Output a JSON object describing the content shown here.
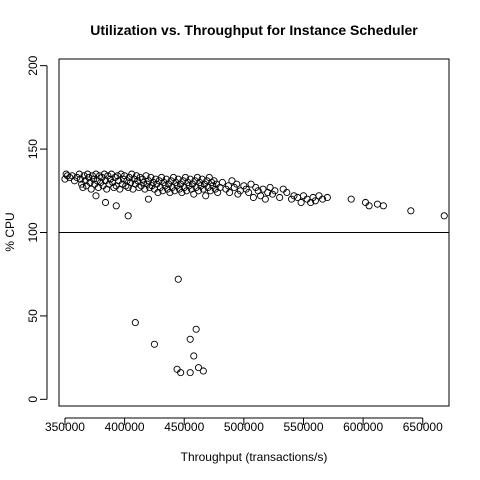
{
  "chart_data": {
    "type": "scatter",
    "title": "Utilization vs. Throughput for Instance Scheduler",
    "xlabel": "Throughput (transactions/s)",
    "ylabel": "% CPU",
    "xlim": [
      345000,
      672000
    ],
    "ylim": [
      -4,
      204
    ],
    "xticks": [
      350000,
      400000,
      450000,
      500000,
      550000,
      600000,
      650000
    ],
    "xtick_labels": [
      "350000",
      "400000",
      "450000",
      "500000",
      "550000",
      "600000",
      "650000"
    ],
    "yticks": [
      0,
      50,
      100,
      150,
      200
    ],
    "ytick_labels": [
      "0",
      "50",
      "100",
      "150",
      "200"
    ],
    "reference_line": {
      "y": 100
    },
    "grid": false,
    "legend": "none",
    "marker": "open-circle",
    "points": [
      [
        350000,
        132
      ],
      [
        351000,
        135
      ],
      [
        352000,
        134
      ],
      [
        354000,
        133
      ],
      [
        356000,
        134
      ],
      [
        358000,
        131
      ],
      [
        360000,
        133
      ],
      [
        362000,
        135
      ],
      [
        363000,
        132
      ],
      [
        364000,
        129
      ],
      [
        365000,
        127
      ],
      [
        366000,
        134
      ],
      [
        367000,
        131
      ],
      [
        368000,
        128
      ],
      [
        369000,
        135
      ],
      [
        370000,
        133
      ],
      [
        371000,
        130
      ],
      [
        372000,
        126
      ],
      [
        373000,
        134
      ],
      [
        374000,
        132
      ],
      [
        375000,
        129
      ],
      [
        376000,
        135
      ],
      [
        377000,
        131
      ],
      [
        378000,
        127
      ],
      [
        379000,
        134
      ],
      [
        380000,
        130
      ],
      [
        381000,
        133
      ],
      [
        382000,
        128
      ],
      [
        383000,
        135
      ],
      [
        384000,
        131
      ],
      [
        385000,
        126
      ],
      [
        386000,
        134
      ],
      [
        387000,
        129
      ],
      [
        388000,
        132
      ],
      [
        389000,
        135
      ],
      [
        390000,
        130
      ],
      [
        391000,
        127
      ],
      [
        392000,
        133
      ],
      [
        393000,
        128
      ],
      [
        394000,
        134
      ],
      [
        395000,
        131
      ],
      [
        396000,
        126
      ],
      [
        397000,
        135
      ],
      [
        398000,
        129
      ],
      [
        399000,
        132
      ],
      [
        400000,
        134
      ],
      [
        401000,
        128
      ],
      [
        402000,
        131
      ],
      [
        403000,
        127
      ],
      [
        404000,
        133
      ],
      [
        405000,
        130
      ],
      [
        406000,
        135
      ],
      [
        407000,
        126
      ],
      [
        408000,
        132
      ],
      [
        409000,
        129
      ],
      [
        410000,
        134
      ],
      [
        411000,
        131
      ],
      [
        412000,
        127
      ],
      [
        413000,
        133
      ],
      [
        414000,
        128
      ],
      [
        415000,
        132
      ],
      [
        416000,
        130
      ],
      [
        417000,
        126
      ],
      [
        418000,
        134
      ],
      [
        419000,
        129
      ],
      [
        420000,
        131
      ],
      [
        421000,
        127
      ],
      [
        422000,
        133
      ],
      [
        423000,
        128
      ],
      [
        424000,
        130
      ],
      [
        425000,
        126
      ],
      [
        426000,
        132
      ],
      [
        427000,
        129
      ],
      [
        428000,
        124
      ],
      [
        429000,
        131
      ],
      [
        430000,
        127
      ],
      [
        431000,
        133
      ],
      [
        432000,
        125
      ],
      [
        433000,
        130
      ],
      [
        434000,
        128
      ],
      [
        435000,
        132
      ],
      [
        436000,
        126
      ],
      [
        437000,
        129
      ],
      [
        438000,
        124
      ],
      [
        439000,
        131
      ],
      [
        440000,
        127
      ],
      [
        441000,
        133
      ],
      [
        442000,
        125
      ],
      [
        443000,
        130
      ],
      [
        444000,
        128
      ],
      [
        445000,
        132
      ],
      [
        446000,
        126
      ],
      [
        447000,
        129
      ],
      [
        448000,
        124
      ],
      [
        449000,
        131
      ],
      [
        450000,
        127
      ],
      [
        451000,
        133
      ],
      [
        452000,
        125
      ],
      [
        453000,
        130
      ],
      [
        454000,
        128
      ],
      [
        455000,
        132
      ],
      [
        456000,
        126
      ],
      [
        457000,
        129
      ],
      [
        458000,
        123
      ],
      [
        459000,
        131
      ],
      [
        460000,
        127
      ],
      [
        461000,
        133
      ],
      [
        462000,
        125
      ],
      [
        463000,
        130
      ],
      [
        464000,
        128
      ],
      [
        465000,
        132
      ],
      [
        466000,
        126
      ],
      [
        467000,
        129
      ],
      [
        468000,
        122
      ],
      [
        469000,
        131
      ],
      [
        470000,
        127
      ],
      [
        471000,
        133
      ],
      [
        472000,
        125
      ],
      [
        473000,
        130
      ],
      [
        474000,
        128
      ],
      [
        475000,
        131
      ],
      [
        476000,
        126
      ],
      [
        477000,
        129
      ],
      [
        478000,
        124
      ],
      [
        480000,
        127
      ],
      [
        482000,
        130
      ],
      [
        485000,
        126
      ],
      [
        487000,
        128
      ],
      [
        488000,
        124
      ],
      [
        490000,
        131
      ],
      [
        492000,
        127
      ],
      [
        494000,
        129
      ],
      [
        495000,
        123
      ],
      [
        497000,
        125
      ],
      [
        500000,
        128
      ],
      [
        502000,
        126
      ],
      [
        504000,
        124
      ],
      [
        506000,
        129
      ],
      [
        508000,
        121
      ],
      [
        510000,
        127
      ],
      [
        512000,
        125
      ],
      [
        514000,
        122
      ],
      [
        516000,
        126
      ],
      [
        518000,
        120
      ],
      [
        520000,
        124
      ],
      [
        522000,
        127
      ],
      [
        524000,
        123
      ],
      [
        526000,
        125
      ],
      [
        530000,
        121
      ],
      [
        533000,
        126
      ],
      [
        536000,
        124
      ],
      [
        540000,
        120
      ],
      [
        542000,
        122
      ],
      [
        545000,
        121
      ],
      [
        548000,
        118
      ],
      [
        550000,
        122
      ],
      [
        553000,
        120
      ],
      [
        556000,
        118
      ],
      [
        558000,
        121
      ],
      [
        560000,
        119
      ],
      [
        563000,
        122
      ],
      [
        566000,
        120
      ],
      [
        570000,
        121
      ],
      [
        590000,
        120
      ],
      [
        602000,
        118
      ],
      [
        605000,
        116
      ],
      [
        612000,
        117
      ],
      [
        617000,
        116
      ],
      [
        640000,
        113
      ],
      [
        668000,
        110
      ],
      [
        376000,
        122
      ],
      [
        384000,
        118
      ],
      [
        393000,
        116
      ],
      [
        403000,
        110
      ],
      [
        420000,
        120
      ],
      [
        445000,
        72
      ],
      [
        409000,
        46
      ],
      [
        460000,
        42
      ],
      [
        425000,
        33
      ],
      [
        455000,
        36
      ],
      [
        458000,
        26
      ],
      [
        462000,
        19
      ],
      [
        466000,
        17
      ],
      [
        444000,
        18
      ],
      [
        447000,
        16
      ],
      [
        455000,
        16
      ]
    ]
  }
}
